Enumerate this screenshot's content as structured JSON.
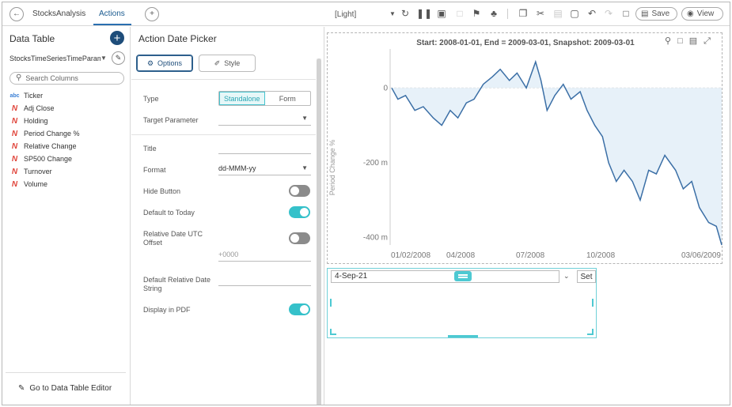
{
  "topbar": {
    "back_icon": "arrow-left-icon",
    "app_name": "StocksAnalysis",
    "active_tab": "Actions",
    "add_tab_icon": "plus-icon",
    "theme": "[Light]",
    "save_label": "Save",
    "view_label": "View"
  },
  "left": {
    "title": "Data Table",
    "data_source": "StocksTimeSeriesTimeParameter",
    "search_placeholder": "Search Columns",
    "columns": [
      {
        "type": "abc",
        "name": "Ticker"
      },
      {
        "type": "N",
        "name": "Adj Close"
      },
      {
        "type": "N",
        "name": "Holding"
      },
      {
        "type": "N",
        "name": "Period Change %"
      },
      {
        "type": "N",
        "name": "Relative Change"
      },
      {
        "type": "N",
        "name": "SP500 Change"
      },
      {
        "type": "N",
        "name": "Turnover"
      },
      {
        "type": "N",
        "name": "Volume"
      }
    ],
    "footer_link": "Go to Data Table Editor"
  },
  "props": {
    "title": "Action Date Picker",
    "options_label": "Options",
    "style_label": "Style",
    "type_label": "Type",
    "type_standalone": "Standalone",
    "type_form": "Form",
    "target_param_label": "Target Parameter",
    "title_label": "Title",
    "format_label": "Format",
    "format_value": "dd-MMM-yy",
    "hide_button_label": "Hide Button",
    "hide_button_on": false,
    "default_today_label": "Default to Today",
    "default_today_on": true,
    "rel_utc_label": "Relative Date UTC Offset",
    "rel_utc_on": false,
    "utc_offset_placeholder": "+0000",
    "default_rel_label": "Default Relative Date String",
    "display_pdf_label": "Display in PDF",
    "display_pdf_on": true
  },
  "chart_data": {
    "type": "line",
    "title": "Start: 2008-01-01, End = 2009-03-01, Snapshot: 2009-03-01",
    "ylabel": "Period Change %",
    "yticks": [
      "0",
      "-200 m",
      "-400 m"
    ],
    "xticks": [
      "01/02/2008",
      "04/2008",
      "07/2008",
      "10/2008",
      "03/06/2009"
    ],
    "ylim": [
      -0.42,
      0.1
    ],
    "x_dates": [
      "2008-01-02",
      "2008-01-10",
      "2008-01-20",
      "2008-02-01",
      "2008-02-12",
      "2008-02-25",
      "2008-03-07",
      "2008-03-18",
      "2008-03-28",
      "2008-04-08",
      "2008-04-18",
      "2008-04-30",
      "2008-05-12",
      "2008-05-22",
      "2008-06-03",
      "2008-06-13",
      "2008-06-25",
      "2008-07-07",
      "2008-07-14",
      "2008-07-22",
      "2008-08-01",
      "2008-08-12",
      "2008-08-22",
      "2008-09-03",
      "2008-09-12",
      "2008-09-22",
      "2008-10-02",
      "2008-10-10",
      "2008-10-20",
      "2008-10-30",
      "2008-11-10",
      "2008-11-20",
      "2008-12-01",
      "2008-12-11",
      "2008-12-22",
      "2009-01-05",
      "2009-01-15",
      "2009-01-26",
      "2009-02-05",
      "2009-02-17",
      "2009-02-27",
      "2009-03-06"
    ],
    "values": [
      0.0,
      -0.03,
      -0.02,
      -0.06,
      -0.05,
      -0.08,
      -0.1,
      -0.06,
      -0.08,
      -0.04,
      -0.03,
      0.01,
      0.03,
      0.05,
      0.02,
      0.04,
      0.0,
      0.07,
      0.02,
      -0.06,
      -0.02,
      0.01,
      -0.03,
      -0.01,
      -0.06,
      -0.1,
      -0.13,
      -0.2,
      -0.25,
      -0.22,
      -0.25,
      -0.3,
      -0.22,
      -0.23,
      -0.18,
      -0.22,
      -0.27,
      -0.25,
      -0.32,
      -0.36,
      -0.37,
      -0.42
    ],
    "grid": false,
    "area_fill": true
  },
  "date_picker": {
    "value": "4-Sep-21",
    "set_label": "Set"
  }
}
